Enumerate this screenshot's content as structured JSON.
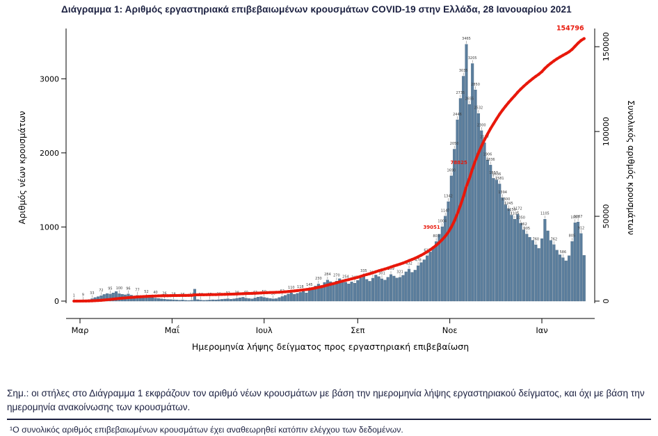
{
  "title": "Διάγραμμα 1: Αριθμός εργαστηριακά επιβεβαιωμένων κρουσμάτων COVID-19 στην Ελλάδα, 28 Ιανουαρίου 2021",
  "notes": {
    "note1": "Σημ.: οι στήλες στο Διάγραμμα 1 εκφράζουν τον αριθμό νέων κρουσμάτων με βάση την ημερομηνία λήψης εργαστηριακού δείγματος, και όχι με βάση την ημερομηνία ανακοίνωσης των κρουσμάτων.",
    "footnote": "¹Ο συνολικός αριθμός επιβεβαιωμένων κρουσμάτων έχει αναθεωρηθεί κατόπιν ελέγχου των δεδομένων."
  },
  "colors": {
    "bar": "#5b7e9d",
    "bar_edge": "#47657f",
    "cumulative_line": "#e8180b",
    "axis_text": "#000000",
    "bar_label_text": "#3c3c3c",
    "heading_text": "#1b2040"
  },
  "chart_data": {
    "type": "bar",
    "title": "Διάγραμμα 1: Αριθμός εργαστηριακά επιβεβαιωμένων κρουσμάτων COVID-19 στην Ελλάδα, 28 Ιανουαρίου 2021",
    "xlabel": "Ημερομηνία λήψης δείγματος προς εργαστηριακή επιβεβαίωση",
    "ylabel_left": "Αριθμός νέων κρουσμάτων",
    "ylabel_right": "Συνολικός αριθμός κρουσμάτων",
    "x_tick_labels": [
      "Μαρ",
      "Μαΐ",
      "Ιουλ",
      "Σεπ",
      "Νοε",
      "Ιαν"
    ],
    "x_tick_days": [
      4,
      65,
      126,
      188,
      249,
      310
    ],
    "x_day_range": [
      0,
      338
    ],
    "y_left_ticks": [
      0,
      1000,
      2000,
      3000
    ],
    "y_left_max": 3650,
    "y_right_ticks": [
      0,
      50000,
      100000,
      150000
    ],
    "y_right_max": 159500,
    "grid": false,
    "legend": "none",
    "bars": {
      "series_name": "daily_new_cases",
      "start_day": 0,
      "step_days": 2,
      "values": [
        1,
        3,
        5,
        9,
        14,
        20,
        33,
        48,
        60,
        72,
        90,
        102,
        95,
        110,
        129,
        100,
        92,
        85,
        96,
        80,
        70,
        77,
        65,
        58,
        52,
        60,
        45,
        40,
        35,
        30,
        26,
        22,
        20,
        18,
        15,
        12,
        16,
        10,
        8,
        12,
        161,
        20,
        14,
        10,
        12,
        15,
        18,
        16,
        20,
        24,
        28,
        32,
        25,
        30,
        38,
        45,
        52,
        40,
        34,
        30,
        43,
        54,
        60,
        50,
        42,
        35,
        30,
        33,
        48,
        62,
        78,
        95,
        110,
        92,
        104,
        118,
        132,
        110,
        145,
        168,
        203,
        230,
        210,
        251,
        284,
        262,
        241,
        270,
        302,
        281,
        254,
        232,
        259,
        242,
        279,
        312,
        335,
        293,
        268,
        310,
        352,
        330,
        301,
        283,
        322,
        359,
        338,
        312,
        321,
        348,
        395,
        432,
        388,
        418,
        478,
        520,
        558,
        612,
        663,
        724,
        803,
        902,
        1004,
        1147,
        1342,
        1690,
        2050,
        2446,
        2735,
        3035,
        3465,
        2655,
        3205,
        2850,
        2532,
        2300,
        2137,
        1906,
        1836,
        1657,
        1636,
        1581,
        1394,
        1300,
        1245,
        1159,
        1105,
        1172,
        1050,
        962,
        905,
        861,
        820,
        760,
        712,
        843,
        1105,
        948,
        818,
        762,
        688,
        625,
        586,
        544,
        612,
        805,
        1057,
        1067,
        912,
        617
      ]
    },
    "cumulative": {
      "series_name": "cumulative_total_cases",
      "total": 154796,
      "annotations": [
        {
          "day": 244,
          "value": 39051,
          "label": "39051"
        },
        {
          "day": 262,
          "value": 78825,
          "label": "78825"
        },
        {
          "day": 337,
          "value": 154796,
          "label": "154796"
        }
      ]
    }
  }
}
